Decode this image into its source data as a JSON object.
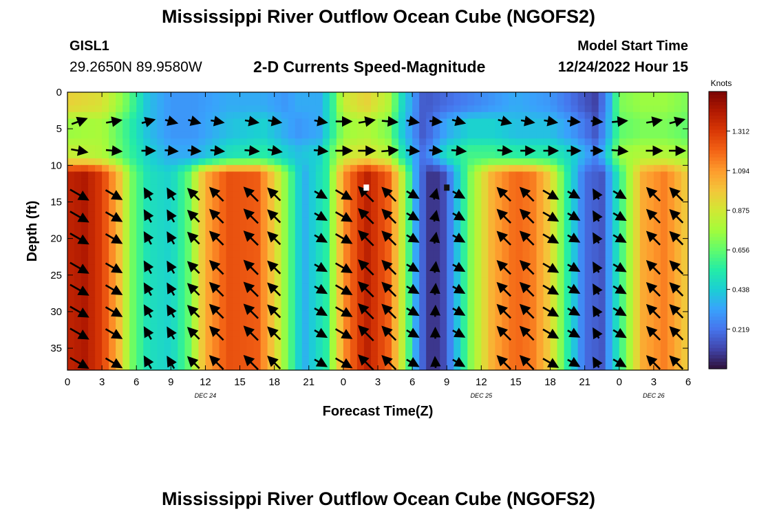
{
  "header": {
    "title": "Mississippi River Outflow Ocean Cube (NGOFS2)",
    "station": "GISL1",
    "coords": "29.2650N  89.9580W",
    "subtitle": "2-D Currents Speed-Magnitude",
    "model_start_label": "Model Start Time",
    "model_start_value": "12/24/2022 Hour 15"
  },
  "footer": {
    "title": "Mississippi River Outflow Ocean Cube (NGOFS2)"
  },
  "chart_data": {
    "type": "heatmap",
    "title": "2-D Currents Speed-Magnitude",
    "xlabel": "Forecast Time(Z)",
    "ylabel": "Depth (ft)",
    "x_tick_labels": [
      "0",
      "3",
      "6",
      "9",
      "12",
      "15",
      "18",
      "21",
      "0",
      "3",
      "6",
      "9",
      "12",
      "15",
      "18",
      "21",
      "0",
      "3",
      "6"
    ],
    "date_labels": [
      {
        "tick_index": 4,
        "text": "DEC 24"
      },
      {
        "tick_index": 12,
        "text": "DEC 25"
      },
      {
        "tick_index": 17,
        "text": "DEC 26"
      }
    ],
    "y_ticks": [
      0,
      5,
      10,
      15,
      20,
      25,
      30,
      35
    ],
    "ylim": [
      0,
      38
    ],
    "y_inverted": true,
    "forecast_hours_range": [
      0,
      54
    ],
    "colorbar": {
      "unit_label": "Knots",
      "ticks": [
        0.219,
        0.438,
        0.656,
        0.875,
        1.094,
        1.312
      ],
      "range": [
        0.0,
        1.53
      ],
      "colors": [
        "#30123b",
        "#4145ab",
        "#4675ed",
        "#39a2fc",
        "#1bcfd4",
        "#24eca6",
        "#61fc6c",
        "#a4fc3b",
        "#d1e834",
        "#f3c63a",
        "#fe9b2d",
        "#f36315",
        "#d93806",
        "#b11901",
        "#7a0403"
      ]
    },
    "speed_profiles": {
      "surface_0_to_2ft": {
        "time_hours": [
          0,
          3,
          5,
          7,
          9,
          11,
          14,
          17,
          19,
          20,
          22,
          23,
          24,
          26,
          28,
          29,
          31,
          33,
          35,
          37,
          39,
          42,
          44,
          46,
          47,
          48,
          50,
          52,
          54
        ],
        "speed_knots": [
          0.95,
          0.9,
          0.7,
          0.4,
          0.3,
          0.3,
          0.35,
          0.35,
          0.3,
          0.35,
          0.35,
          0.55,
          0.85,
          0.95,
          0.8,
          0.5,
          0.15,
          0.2,
          0.25,
          0.3,
          0.35,
          0.3,
          0.2,
          0.1,
          0.3,
          0.7,
          0.75,
          0.75,
          0.7
        ]
      },
      "upper_4_to_6ft": {
        "time_hours": [
          0,
          3,
          5,
          7,
          9,
          11,
          14,
          17,
          19,
          20,
          22,
          23,
          24,
          26,
          28,
          29,
          31,
          33,
          35,
          37,
          39,
          42,
          44,
          46,
          47,
          48,
          50,
          52,
          54
        ],
        "speed_knots": [
          0.75,
          0.78,
          0.6,
          0.4,
          0.3,
          0.3,
          0.4,
          0.45,
          0.35,
          0.3,
          0.35,
          0.55,
          0.75,
          0.8,
          0.7,
          0.45,
          0.15,
          0.35,
          0.45,
          0.45,
          0.4,
          0.4,
          0.3,
          0.15,
          0.35,
          0.65,
          0.7,
          0.7,
          0.65
        ]
      },
      "near_8ft": {
        "time_hours": [
          0,
          3,
          5,
          7,
          9,
          11,
          14,
          17,
          19,
          20,
          22,
          23,
          24,
          26,
          28,
          29,
          31,
          33,
          35,
          37,
          39,
          42,
          44,
          46,
          47,
          48,
          50,
          52,
          54
        ],
        "speed_knots": [
          0.85,
          0.8,
          0.62,
          0.45,
          0.35,
          0.35,
          0.5,
          0.55,
          0.45,
          0.4,
          0.45,
          0.65,
          0.85,
          0.9,
          0.8,
          0.55,
          0.2,
          0.5,
          0.6,
          0.6,
          0.55,
          0.55,
          0.45,
          0.25,
          0.45,
          0.75,
          0.8,
          0.8,
          0.75
        ]
      },
      "below_11ft": {
        "time_hours": [
          0,
          1.5,
          3,
          4.5,
          5.5,
          7,
          9,
          10.5,
          12,
          14,
          16.5,
          18,
          19.5,
          20.5,
          22.5,
          24,
          26,
          28,
          29.5,
          30.5,
          31.5,
          32.5,
          33.5,
          35,
          37,
          39,
          40.5,
          42,
          43.5,
          45,
          46.5,
          48,
          50,
          52,
          54
        ],
        "speed_knots": [
          1.38,
          1.42,
          1.3,
          1.0,
          0.7,
          0.5,
          0.45,
          0.65,
          1.05,
          1.25,
          1.22,
          0.95,
          0.6,
          0.35,
          0.55,
          1.1,
          1.4,
          1.2,
          0.7,
          0.25,
          0.08,
          0.08,
          0.3,
          0.7,
          1.05,
          1.2,
          1.15,
          0.95,
          0.55,
          0.2,
          0.15,
          0.55,
          1.05,
          1.15,
          0.95
        ]
      }
    },
    "vector_columns_hours": [
      1,
      4,
      7,
      9,
      11,
      13,
      16,
      18,
      22,
      24,
      26,
      28,
      30,
      32,
      34,
      38,
      40,
      42,
      44,
      46,
      48,
      51,
      53
    ],
    "vector_rows_depth_ft": [
      4,
      8,
      14,
      17,
      20,
      24,
      27,
      30,
      33,
      37
    ],
    "vector_directions": {
      "surface": [
        20,
        10,
        15,
        -15,
        -15,
        -10,
        -10,
        -10,
        -10,
        0,
        10,
        -5,
        -10,
        -5,
        -15,
        -15,
        -10,
        -10,
        -5,
        -5,
        5,
        10,
        15
      ],
      "band_8ft": [
        -10,
        -5,
        0,
        -5,
        -5,
        -5,
        -5,
        -10,
        -5,
        0,
        0,
        5,
        -5,
        -5,
        -5,
        -5,
        0,
        0,
        0,
        0,
        -5,
        0,
        0
      ],
      "deep_ebb_angle_deg": -30,
      "deep_flood_angle_deg": 135
    },
    "markers": [
      {
        "time_hours": 26,
        "depth_ft": 13,
        "color": "#ffffff"
      },
      {
        "time_hours": 33,
        "depth_ft": 13,
        "color": "#111111"
      }
    ]
  }
}
